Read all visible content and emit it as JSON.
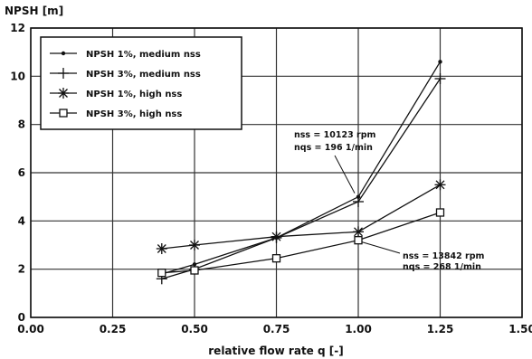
{
  "chart_data": {
    "type": "line",
    "ylabel": "NPSH [m]",
    "xlabel": "relative flow rate q [-]",
    "xlim": [
      0,
      1.5
    ],
    "ylim": [
      0,
      12
    ],
    "x_ticks": [
      "0.00",
      "0.25",
      "0.50",
      "0.75",
      "1.00",
      "1.25",
      "1.50"
    ],
    "y_ticks": [
      "0",
      "2",
      "4",
      "6",
      "8",
      "10",
      "12"
    ],
    "grid": true,
    "legend_position": "top-left",
    "series": [
      {
        "name": "NPSH 1%, medium nss",
        "marker": "dot",
        "points": [
          {
            "x": 0.4,
            "y": 1.8
          },
          {
            "x": 0.5,
            "y": 2.2
          },
          {
            "x": 0.75,
            "y": 3.3
          },
          {
            "x": 1.0,
            "y": 5.0
          },
          {
            "x": 1.25,
            "y": 10.6
          }
        ]
      },
      {
        "name": "NPSH 3%, medium nss",
        "marker": "plus",
        "points": [
          {
            "x": 0.4,
            "y": 1.6
          },
          {
            "x": 0.5,
            "y": 2.0
          },
          {
            "x": 0.75,
            "y": 3.3
          },
          {
            "x": 1.0,
            "y": 4.8
          },
          {
            "x": 1.25,
            "y": 9.9
          }
        ]
      },
      {
        "name": "NPSH 1%, high nss",
        "marker": "star",
        "points": [
          {
            "x": 0.4,
            "y": 2.85
          },
          {
            "x": 0.5,
            "y": 3.0
          },
          {
            "x": 0.75,
            "y": 3.35
          },
          {
            "x": 1.0,
            "y": 3.55
          },
          {
            "x": 1.25,
            "y": 5.5
          }
        ]
      },
      {
        "name": "NPSH 3%, high nss",
        "marker": "square",
        "points": [
          {
            "x": 0.4,
            "y": 1.85
          },
          {
            "x": 0.5,
            "y": 1.95
          },
          {
            "x": 0.75,
            "y": 2.45
          },
          {
            "x": 1.0,
            "y": 3.2
          },
          {
            "x": 1.25,
            "y": 4.35
          }
        ]
      }
    ],
    "annotations": [
      {
        "lines": [
          "nss = 10123 rpm",
          "nqs = 196 1/min"
        ],
        "point": {
          "x": 1.0,
          "y": 5.0
        }
      },
      {
        "lines": [
          "nss = 13842 rpm",
          "nqs = 268 1/min"
        ],
        "point": {
          "x": 1.0,
          "y": 3.2
        }
      }
    ]
  }
}
